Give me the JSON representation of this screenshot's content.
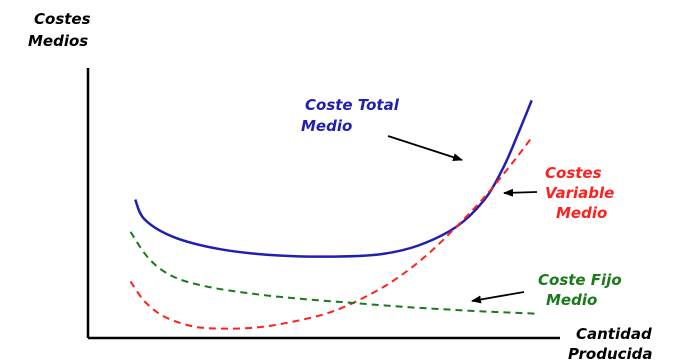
{
  "chart_data": {
    "type": "line",
    "ylabel": [
      "Costes",
      "Medios"
    ],
    "xlabel": [
      "Cantidad",
      "Producida"
    ],
    "xlim": [
      0,
      100
    ],
    "ylim": [
      0,
      100
    ],
    "grid": false,
    "series": [
      {
        "name": "Coste Total Medio",
        "color": "#1f1fb0",
        "dash": "solid",
        "x": [
          10,
          12,
          18,
          28,
          40,
          52,
          62,
          70,
          78,
          84,
          88,
          91,
          94
        ],
        "y": [
          55,
          47,
          40,
          35,
          32.5,
          32,
          33,
          36.5,
          44,
          55,
          68,
          81,
          95
        ]
      },
      {
        "name": "Costes Variable Medio",
        "color": "#ff2020",
        "dash": "dashed",
        "x": [
          9,
          12,
          16,
          22,
          28,
          36,
          44,
          52,
          60,
          66,
          72,
          78,
          84,
          90,
          94
        ],
        "y": [
          22,
          14,
          8,
          4,
          3,
          3.5,
          6,
          10,
          17,
          24,
          33,
          44,
          56,
          70,
          80
        ]
      },
      {
        "name": "Coste Fijo Medio",
        "color": "#1a7a1a",
        "dash": "dashed",
        "x": [
          9,
          13,
          18,
          25,
          35,
          45,
          55,
          65,
          75,
          85,
          95
        ],
        "y": [
          42,
          31,
          24,
          20,
          17,
          15,
          13.5,
          12,
          10.8,
          9.8,
          9
        ]
      }
    ],
    "annotations": [
      {
        "lines": [
          "Coste Total",
          "Medio"
        ],
        "color": "#1f1fb0"
      },
      {
        "lines": [
          "Costes",
          "Variable",
          "Medio"
        ],
        "color": "#ff2020"
      },
      {
        "lines": [
          "Coste Fijo",
          "Medio"
        ],
        "color": "#1a7a1a"
      }
    ]
  }
}
